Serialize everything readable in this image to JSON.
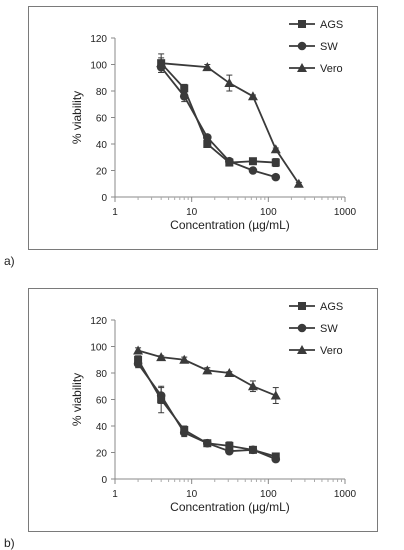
{
  "chart_data": [
    {
      "panel_label": "a)",
      "type": "line",
      "xlabel": "Concentration (µg/mL)",
      "ylabel": "% viability",
      "x_scale": "log",
      "xlim": [
        1,
        1000
      ],
      "ylim": [
        0,
        120
      ],
      "x_ticks": [
        1,
        10,
        100,
        1000
      ],
      "y_ticks": [
        0,
        20,
        40,
        60,
        80,
        100,
        120
      ],
      "grid": false,
      "legend": "right",
      "series": [
        {
          "name": "AGS",
          "marker": "square",
          "x": [
            4,
            8,
            16,
            31,
            63,
            125
          ],
          "y": [
            101,
            82,
            40,
            26,
            27,
            26
          ],
          "err": [
            4,
            3,
            2,
            2,
            2,
            3
          ]
        },
        {
          "name": "SW",
          "marker": "circle",
          "x": [
            4,
            8,
            16,
            31,
            63,
            125
          ],
          "y": [
            98,
            76,
            45,
            27,
            20,
            15
          ],
          "err": [
            4,
            4,
            2,
            2,
            1,
            1
          ]
        },
        {
          "name": "Vero",
          "marker": "triangle",
          "x": [
            4,
            16,
            31,
            63,
            125,
            250
          ],
          "y": [
            101,
            98,
            86,
            76,
            36,
            10
          ],
          "err": [
            7,
            2,
            6,
            1,
            1,
            1
          ]
        }
      ]
    },
    {
      "panel_label": "b)",
      "type": "line",
      "xlabel": "Concentration (µg/mL)",
      "ylabel": "% viability",
      "x_scale": "log",
      "xlim": [
        1,
        1000
      ],
      "ylim": [
        0,
        120
      ],
      "x_ticks": [
        1,
        10,
        100,
        1000
      ],
      "y_ticks": [
        0,
        20,
        40,
        60,
        80,
        100,
        120
      ],
      "grid": false,
      "legend": "right",
      "series": [
        {
          "name": "AGS",
          "marker": "square",
          "x": [
            2,
            4,
            8,
            16,
            31,
            63,
            125
          ],
          "y": [
            90,
            60,
            37,
            27,
            25,
            22,
            17
          ],
          "err": [
            3,
            10,
            3,
            2,
            3,
            2,
            2
          ]
        },
        {
          "name": "SW",
          "marker": "circle",
          "x": [
            2,
            4,
            8,
            16,
            31,
            63,
            125
          ],
          "y": [
            87,
            63,
            35,
            27,
            21,
            22,
            15
          ],
          "err": [
            3,
            6,
            3,
            2,
            2,
            2,
            2
          ]
        },
        {
          "name": "Vero",
          "marker": "triangle",
          "x": [
            2,
            4,
            8,
            16,
            31,
            63,
            125
          ],
          "y": [
            97,
            92,
            90,
            82,
            80,
            70,
            63
          ],
          "err": [
            2,
            1,
            2,
            2,
            1,
            4,
            6
          ]
        }
      ]
    }
  ]
}
